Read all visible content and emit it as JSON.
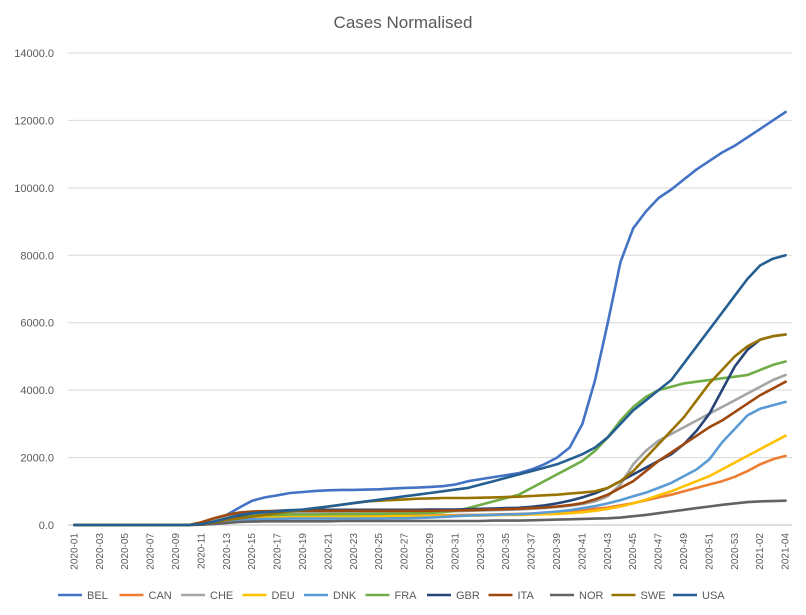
{
  "chart_data": {
    "type": "line",
    "title": "Cases Normalised",
    "xlabel": "",
    "ylabel": "",
    "ylim": [
      0,
      14000
    ],
    "y_ticks": [
      0,
      2000,
      4000,
      6000,
      8000,
      10000,
      12000,
      14000
    ],
    "y_tick_labels": [
      "0.0",
      "2000.0",
      "4000.0",
      "6000.0",
      "8000.0",
      "10000.0",
      "12000.0",
      "14000.0"
    ],
    "grid": true,
    "legend_position": "bottom",
    "categories": [
      "2020-01",
      "2020-02",
      "2020-03",
      "2020-04",
      "2020-05",
      "2020-06",
      "2020-07",
      "2020-08",
      "2020-09",
      "2020-10",
      "2020-11",
      "2020-12",
      "2020-13",
      "2020-14",
      "2020-15",
      "2020-16",
      "2020-17",
      "2020-18",
      "2020-19",
      "2020-20",
      "2020-21",
      "2020-22",
      "2020-23",
      "2020-24",
      "2020-25",
      "2020-26",
      "2020-27",
      "2020-28",
      "2020-29",
      "2020-30",
      "2020-31",
      "2020-32",
      "2020-33",
      "2020-34",
      "2020-35",
      "2020-36",
      "2020-37",
      "2020-38",
      "2020-39",
      "2020-40",
      "2020-41",
      "2020-42",
      "2020-43",
      "2020-44",
      "2020-45",
      "2020-46",
      "2020-47",
      "2020-48",
      "2020-49",
      "2020-50",
      "2020-51",
      "2020-52",
      "2020-53",
      "2021-01",
      "2021-02",
      "2021-03",
      "2021-04"
    ],
    "x_tick_labels": [
      "2020-01",
      "2020-03",
      "2020-05",
      "2020-07",
      "2020-09",
      "2020-11",
      "2020-13",
      "2020-15",
      "2020-17",
      "2020-19",
      "2020-21",
      "2020-23",
      "2020-25",
      "2020-27",
      "2020-29",
      "2020-31",
      "2020-33",
      "2020-35",
      "2020-37",
      "2020-39",
      "2020-41",
      "2020-43",
      "2020-45",
      "2020-47",
      "2020-49",
      "2020-51",
      "2020-53",
      "2021-02",
      "2021-04"
    ],
    "series": [
      {
        "name": "BEL",
        "color": "#4472C4",
        "values": [
          0,
          0,
          0,
          0,
          0,
          0,
          0,
          0,
          0,
          0,
          50,
          120,
          300,
          520,
          720,
          820,
          880,
          950,
          980,
          1010,
          1030,
          1040,
          1040,
          1050,
          1060,
          1080,
          1100,
          1110,
          1130,
          1150,
          1200,
          1300,
          1360,
          1420,
          1480,
          1540,
          1650,
          1800,
          2000,
          2300,
          3000,
          4300,
          6000,
          7800,
          8800,
          9300,
          9700,
          9950,
          10250,
          10550,
          10800,
          11050,
          11250,
          11500,
          11750,
          12000,
          12250
        ]
      },
      {
        "name": "CAN",
        "color": "#ED7D31",
        "values": [
          0,
          0,
          0,
          0,
          0,
          0,
          0,
          0,
          0,
          0,
          10,
          30,
          80,
          140,
          180,
          200,
          220,
          230,
          240,
          250,
          260,
          260,
          270,
          270,
          270,
          270,
          280,
          280,
          280,
          290,
          290,
          300,
          300,
          310,
          320,
          330,
          340,
          360,
          380,
          410,
          440,
          480,
          520,
          580,
          650,
          730,
          820,
          900,
          1000,
          1100,
          1200,
          1300,
          1430,
          1600,
          1800,
          1950,
          2050
        ]
      },
      {
        "name": "CHE",
        "color": "#A5A5A5",
        "values": [
          0,
          0,
          0,
          0,
          0,
          0,
          0,
          0,
          0,
          0,
          40,
          120,
          250,
          350,
          370,
          380,
          380,
          380,
          380,
          380,
          380,
          380,
          380,
          380,
          380,
          390,
          390,
          390,
          400,
          400,
          410,
          420,
          430,
          440,
          450,
          460,
          480,
          500,
          530,
          570,
          620,
          700,
          850,
          1200,
          1800,
          2200,
          2500,
          2700,
          2900,
          3100,
          3300,
          3500,
          3700,
          3900,
          4100,
          4300,
          4450
        ]
      },
      {
        "name": "DEU",
        "color": "#FFC000",
        "values": [
          0,
          0,
          0,
          0,
          0,
          0,
          0,
          0,
          0,
          0,
          20,
          80,
          180,
          230,
          240,
          250,
          250,
          250,
          250,
          250,
          250,
          250,
          250,
          250,
          250,
          260,
          260,
          260,
          260,
          270,
          270,
          280,
          280,
          290,
          300,
          300,
          310,
          320,
          330,
          350,
          380,
          420,
          480,
          550,
          640,
          750,
          880,
          1000,
          1150,
          1300,
          1450,
          1650,
          1850,
          2050,
          2250,
          2450,
          2650
        ]
      },
      {
        "name": "DNK",
        "color": "#5B9BD5",
        "values": [
          0,
          0,
          0,
          0,
          0,
          0,
          0,
          0,
          0,
          0,
          20,
          60,
          120,
          160,
          170,
          180,
          180,
          190,
          190,
          190,
          190,
          190,
          190,
          190,
          190,
          200,
          200,
          210,
          220,
          240,
          260,
          280,
          290,
          300,
          310,
          320,
          340,
          370,
          400,
          440,
          500,
          560,
          640,
          740,
          850,
          960,
          1100,
          1250,
          1450,
          1650,
          1950,
          2450,
          2850,
          3250,
          3450,
          3550,
          3650
        ]
      },
      {
        "name": "FRA",
        "color": "#70AD47",
        "values": [
          0,
          0,
          0,
          0,
          0,
          0,
          0,
          0,
          0,
          0,
          30,
          100,
          200,
          260,
          290,
          300,
          300,
          310,
          310,
          310,
          320,
          320,
          320,
          330,
          330,
          340,
          340,
          350,
          360,
          380,
          420,
          500,
          600,
          700,
          800,
          900,
          1100,
          1300,
          1500,
          1700,
          1900,
          2200,
          2600,
          3100,
          3500,
          3800,
          4000,
          4100,
          4200,
          4250,
          4300,
          4350,
          4400,
          4450,
          4600,
          4750,
          4850
        ]
      },
      {
        "name": "GBR",
        "color": "#264478",
        "values": [
          0,
          0,
          0,
          0,
          0,
          0,
          0,
          0,
          0,
          0,
          20,
          70,
          180,
          280,
          350,
          400,
          420,
          440,
          450,
          450,
          450,
          450,
          450,
          450,
          450,
          450,
          450,
          450,
          460,
          460,
          460,
          470,
          480,
          490,
          500,
          510,
          540,
          580,
          640,
          720,
          820,
          940,
          1100,
          1300,
          1500,
          1700,
          1900,
          2100,
          2400,
          2800,
          3300,
          4000,
          4700,
          5200,
          5500,
          5600,
          5650
        ]
      },
      {
        "name": "ITA",
        "color": "#9E480E",
        "values": [
          0,
          0,
          0,
          0,
          0,
          0,
          0,
          0,
          0,
          0,
          80,
          200,
          300,
          370,
          400,
          410,
          410,
          420,
          420,
          420,
          420,
          420,
          420,
          420,
          420,
          420,
          420,
          420,
          420,
          430,
          430,
          440,
          450,
          460,
          470,
          480,
          500,
          520,
          550,
          590,
          650,
          760,
          900,
          1100,
          1300,
          1600,
          1900,
          2150,
          2400,
          2650,
          2900,
          3100,
          3350,
          3600,
          3850,
          4050,
          4250
        ]
      },
      {
        "name": "NOR",
        "color": "#636363",
        "values": [
          0,
          0,
          0,
          0,
          0,
          0,
          0,
          0,
          0,
          0,
          10,
          30,
          60,
          90,
          100,
          110,
          110,
          110,
          110,
          110,
          110,
          120,
          120,
          120,
          120,
          120,
          120,
          120,
          120,
          120,
          120,
          120,
          120,
          130,
          130,
          130,
          140,
          150,
          160,
          170,
          180,
          190,
          200,
          220,
          260,
          300,
          350,
          400,
          450,
          500,
          550,
          600,
          640,
          680,
          700,
          710,
          720
        ]
      },
      {
        "name": "SWE",
        "color": "#997300",
        "values": [
          0,
          0,
          0,
          0,
          0,
          0,
          0,
          0,
          0,
          0,
          30,
          80,
          150,
          200,
          250,
          300,
          350,
          400,
          450,
          500,
          550,
          600,
          650,
          700,
          720,
          740,
          760,
          780,
          790,
          800,
          800,
          800,
          810,
          820,
          830,
          840,
          860,
          880,
          900,
          930,
          960,
          1000,
          1100,
          1300,
          1600,
          2000,
          2400,
          2800,
          3200,
          3700,
          4200,
          4600,
          5000,
          5300,
          5500,
          5600,
          5650
        ]
      },
      {
        "name": "USA",
        "color": "#255E91",
        "values": [
          0,
          0,
          0,
          0,
          0,
          0,
          0,
          0,
          0,
          0,
          30,
          100,
          200,
          300,
          350,
          380,
          400,
          430,
          460,
          500,
          550,
          600,
          650,
          700,
          750,
          800,
          850,
          900,
          950,
          1000,
          1050,
          1100,
          1200,
          1300,
          1400,
          1500,
          1600,
          1700,
          1800,
          1950,
          2100,
          2300,
          2600,
          3000,
          3400,
          3700,
          4000,
          4300,
          4800,
          5300,
          5800,
          6300,
          6800,
          7300,
          7700,
          7900,
          8000
        ]
      }
    ]
  }
}
